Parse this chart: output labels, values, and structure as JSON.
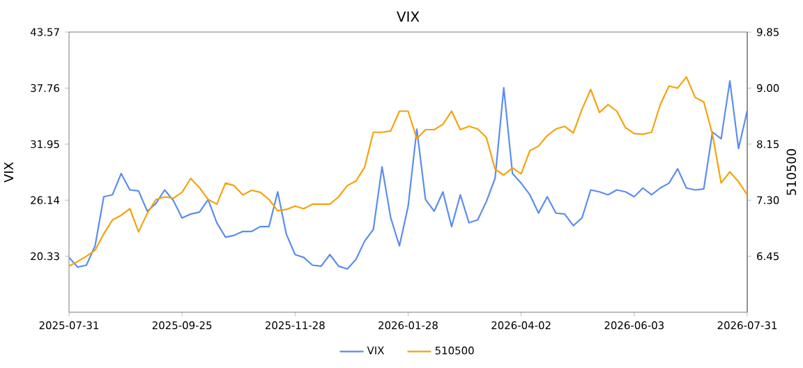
{
  "chart_data": {
    "type": "line",
    "title": "VIX",
    "ylabel": "VIX",
    "y2label": "510500",
    "categories": [
      "2025-07-31",
      null,
      null,
      null,
      null,
      null,
      null,
      null,
      null,
      null,
      null,
      null,
      null,
      "2025-09-25",
      null,
      null,
      null,
      null,
      null,
      null,
      null,
      null,
      null,
      null,
      null,
      null,
      "2025-11-28",
      null,
      null,
      null,
      null,
      null,
      null,
      null,
      null,
      null,
      null,
      null,
      null,
      "2026-01-28",
      null,
      null,
      null,
      null,
      null,
      null,
      null,
      null,
      null,
      null,
      null,
      null,
      "2026-04-02",
      null,
      null,
      null,
      null,
      null,
      null,
      null,
      null,
      null,
      null,
      null,
      null,
      "2026-06-03",
      null,
      null,
      null,
      null,
      null,
      null,
      null,
      null,
      null,
      null,
      null,
      null,
      "2026-07-31"
    ],
    "ylim": [
      14.52,
      43.57
    ],
    "yticks": [
      20.33,
      26.14,
      31.95,
      37.76,
      43.57
    ],
    "y2lim": [
      5.6,
      9.85
    ],
    "y2ticks": [
      6.45,
      {
        "value": 7.3,
        "label": "7.30"
      },
      8.15,
      {
        "value": 9,
        "label": "9.00"
      },
      9.85
    ],
    "legend": "bottom",
    "series": [
      {
        "name": "VIX",
        "color": "#5b8def",
        "values": [
          20.2,
          19.2,
          19.4,
          21.4,
          26.5,
          26.7,
          28.9,
          27.2,
          27.1,
          25.0,
          25.8,
          27.2,
          26.1,
          24.3,
          24.7,
          24.9,
          26.2,
          23.8,
          22.3,
          22.5,
          22.9,
          22.9,
          23.4,
          23.4,
          27.0,
          22.6,
          20.5,
          20.2,
          19.4,
          19.3,
          20.5,
          19.3,
          19.0,
          20.0,
          21.9,
          23.1,
          29.6,
          24.3,
          21.4,
          25.5,
          33.5,
          26.2,
          25.0,
          27.0,
          23.4,
          26.7,
          23.8,
          24.1,
          26.0,
          28.4,
          37.8,
          28.9,
          27.9,
          26.7,
          24.8,
          26.5,
          24.8,
          24.7,
          23.5,
          24.3,
          27.2,
          27.0,
          26.7,
          27.2,
          27.0,
          26.5,
          27.4,
          26.7,
          27.4,
          27.9,
          29.4,
          27.4,
          27.2,
          27.3,
          33.2,
          32.5,
          38.5,
          31.5,
          35.4
        ]
      },
      {
        "name": "510500",
        "color": "#f5a20a",
        "axis": "y2",
        "values": [
          6.3,
          6.37,
          6.45,
          6.54,
          6.79,
          7.0,
          7.07,
          7.17,
          6.82,
          7.1,
          7.31,
          7.35,
          7.33,
          7.42,
          7.63,
          7.49,
          7.31,
          7.24,
          7.56,
          7.52,
          7.38,
          7.45,
          7.42,
          7.31,
          7.14,
          7.16,
          7.21,
          7.17,
          7.24,
          7.24,
          7.24,
          7.35,
          7.52,
          7.59,
          7.8,
          8.33,
          8.33,
          8.35,
          8.65,
          8.65,
          8.23,
          8.37,
          8.37,
          8.45,
          8.65,
          8.37,
          8.42,
          8.38,
          8.25,
          7.77,
          7.68,
          7.79,
          7.7,
          8.05,
          8.12,
          8.28,
          8.38,
          8.42,
          8.32,
          8.68,
          8.98,
          8.63,
          8.75,
          8.65,
          8.4,
          8.31,
          8.3,
          8.33,
          8.75,
          9.03,
          9.0,
          9.17,
          8.86,
          8.79,
          8.3,
          7.56,
          7.73,
          7.58,
          7.38
        ]
      }
    ]
  }
}
